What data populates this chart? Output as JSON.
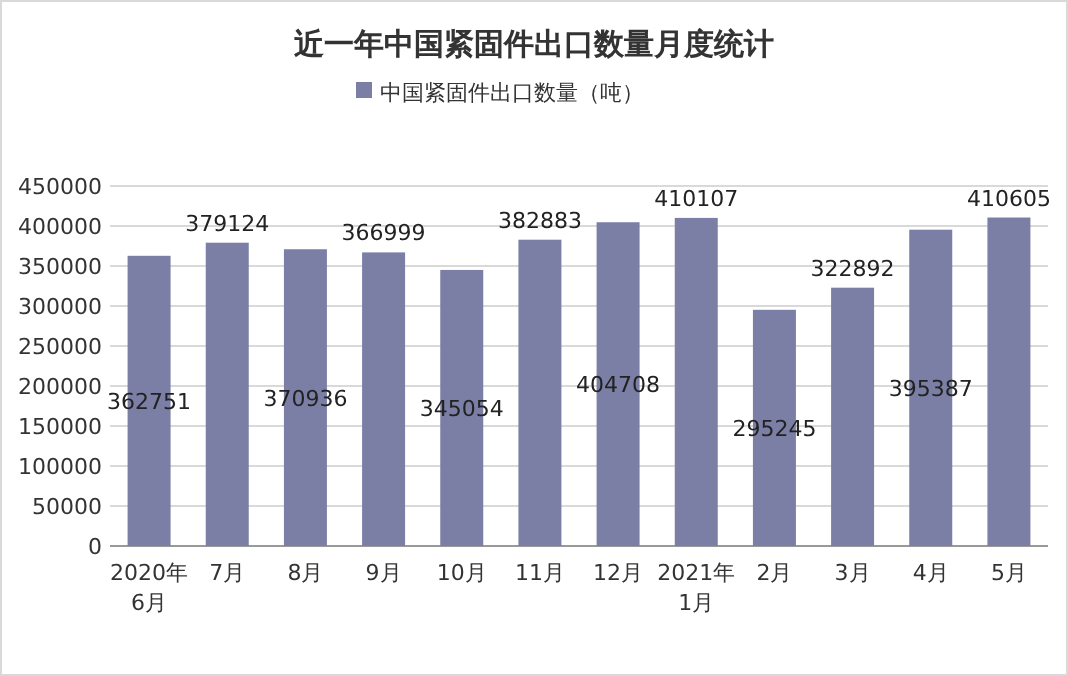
{
  "chart_data": {
    "type": "bar",
    "title": "近一年中国紧固件出口数量月度统计",
    "categories": [
      "2020年\n6月",
      "7月",
      "8月",
      "9月",
      "10月",
      "11月",
      "12月",
      "2021年\n1月",
      "2月",
      "3月",
      "4月",
      "5月"
    ],
    "series": [
      {
        "name": "中国紧固件出口数量（吨）",
        "color": "#7b7fa6",
        "values": [
          362751,
          379124,
          370936,
          366999,
          345054,
          382883,
          404708,
          410107,
          295245,
          322892,
          395387,
          410605
        ]
      }
    ],
    "ylim": [
      0,
      450000
    ],
    "yticks": [
      0,
      50000,
      100000,
      150000,
      200000,
      250000,
      300000,
      350000,
      400000,
      450000
    ],
    "grid": "y",
    "legend": "top",
    "data_labels": true
  }
}
